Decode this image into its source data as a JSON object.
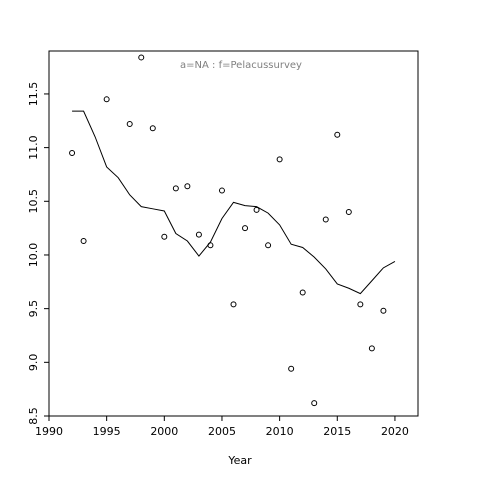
{
  "chart_data": {
    "type": "scatter",
    "xlabel": "Year",
    "ylabel": "",
    "annotation": "a=NA  :  f=Pelacussurvey",
    "xlim": [
      1990,
      2022
    ],
    "ylim": [
      8.5,
      11.9
    ],
    "xticks": [
      1990,
      1995,
      2000,
      2005,
      2010,
      2015,
      2020
    ],
    "yticks": [
      8.5,
      9.0,
      9.5,
      10.0,
      10.5,
      11.0,
      11.5
    ],
    "grid": false,
    "series": [
      {
        "kind": "points",
        "x": [
          1992,
          1993,
          1995,
          1997,
          1998,
          1999,
          2000,
          2001,
          2002,
          2003,
          2004,
          2005,
          2006,
          2007,
          2008,
          2009,
          2010,
          2011,
          2012,
          2013,
          2014,
          2015,
          2016,
          2017,
          2018,
          2019
        ],
        "y": [
          10.95,
          10.13,
          11.45,
          11.22,
          11.84,
          11.18,
          10.17,
          10.62,
          10.64,
          10.19,
          10.09,
          10.6,
          9.54,
          10.25,
          10.42,
          10.09,
          10.89,
          8.94,
          9.65,
          8.62,
          10.33,
          11.12,
          10.4,
          9.54,
          9.13,
          9.48
        ]
      },
      {
        "kind": "line",
        "x": [
          1992,
          1993,
          1994,
          1995,
          1996,
          1997,
          1998,
          1999,
          2000,
          2001,
          2002,
          2003,
          2004,
          2005,
          2006,
          2007,
          2008,
          2009,
          2010,
          2011,
          2012,
          2013,
          2014,
          2015,
          2016,
          2017,
          2018,
          2019,
          2020
        ],
        "y": [
          11.34,
          11.34,
          11.1,
          10.82,
          10.72,
          10.56,
          10.45,
          10.43,
          10.41,
          10.2,
          10.13,
          9.99,
          10.12,
          10.34,
          10.49,
          10.46,
          10.45,
          10.39,
          10.28,
          10.1,
          10.07,
          9.98,
          9.87,
          9.73,
          9.69,
          9.64,
          9.76,
          9.88,
          9.94
        ]
      }
    ]
  }
}
